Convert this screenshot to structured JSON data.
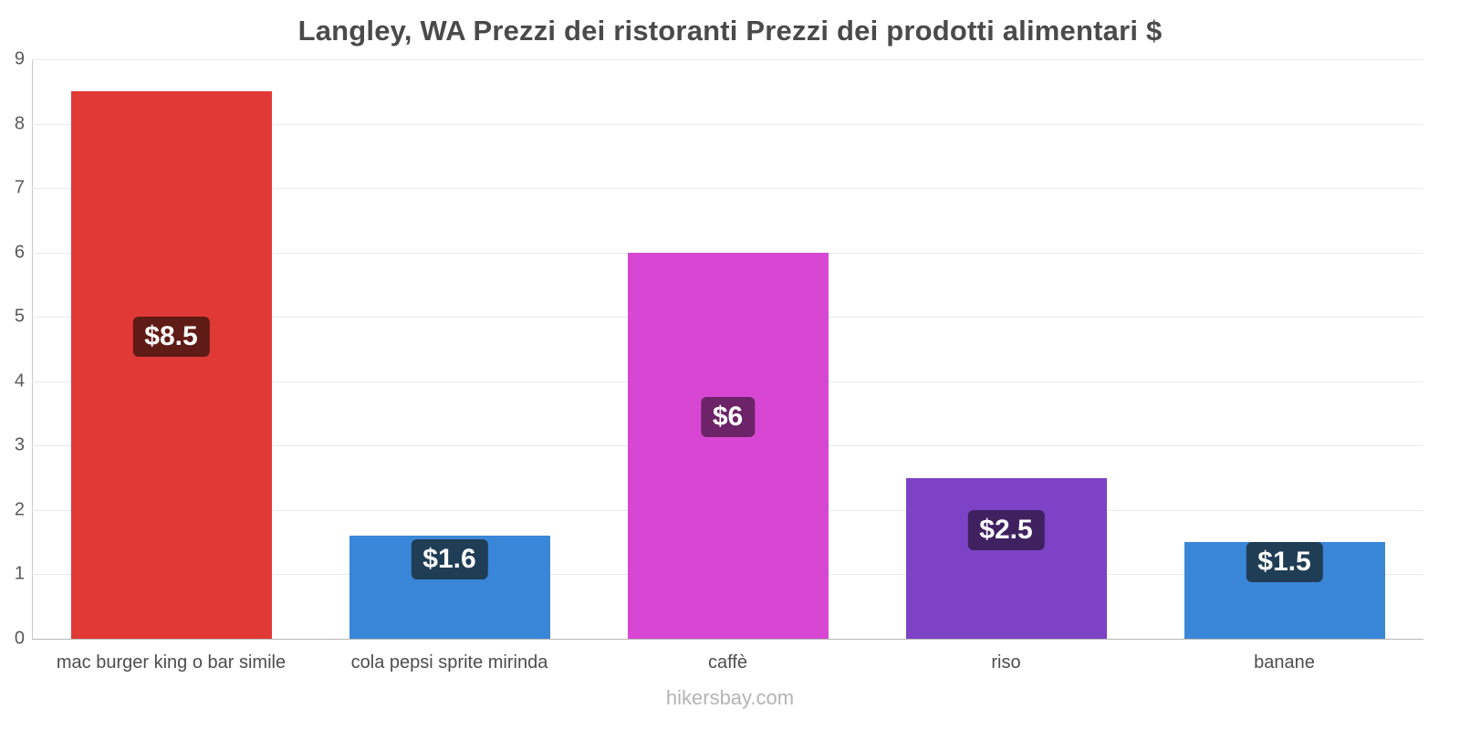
{
  "title": "Langley, WA Prezzi dei ristoranti Prezzi dei prodotti alimentari $",
  "footer": "hikersbay.com",
  "chart_data": {
    "type": "bar",
    "title": "Langley, WA Prezzi dei ristoranti Prezzi dei prodotti alimentari $",
    "categories": [
      "mac burger king o bar simile",
      "cola pepsi sprite mirinda",
      "caffè",
      "riso",
      "banane"
    ],
    "values": [
      8.5,
      1.6,
      6,
      2.5,
      1.5
    ],
    "value_labels": [
      "$8.5",
      "$1.6",
      "$6",
      "$2.5",
      "$1.5"
    ],
    "bar_colors": [
      "#e13935",
      "#3a86d8",
      "#d847d3",
      "#7d42c6",
      "#3a86d8"
    ],
    "label_bg_colors": [
      "#5f1b15",
      "#203d56",
      "#6c2367",
      "#3f2160",
      "#203d56"
    ],
    "xlabel": "",
    "ylabel": "",
    "ylim": [
      0,
      9
    ],
    "yticks": [
      0,
      1,
      2,
      3,
      4,
      5,
      6,
      7,
      8,
      9
    ],
    "grid": true,
    "legend": "none",
    "currency": "$",
    "watermark": "hikersbay.com"
  }
}
